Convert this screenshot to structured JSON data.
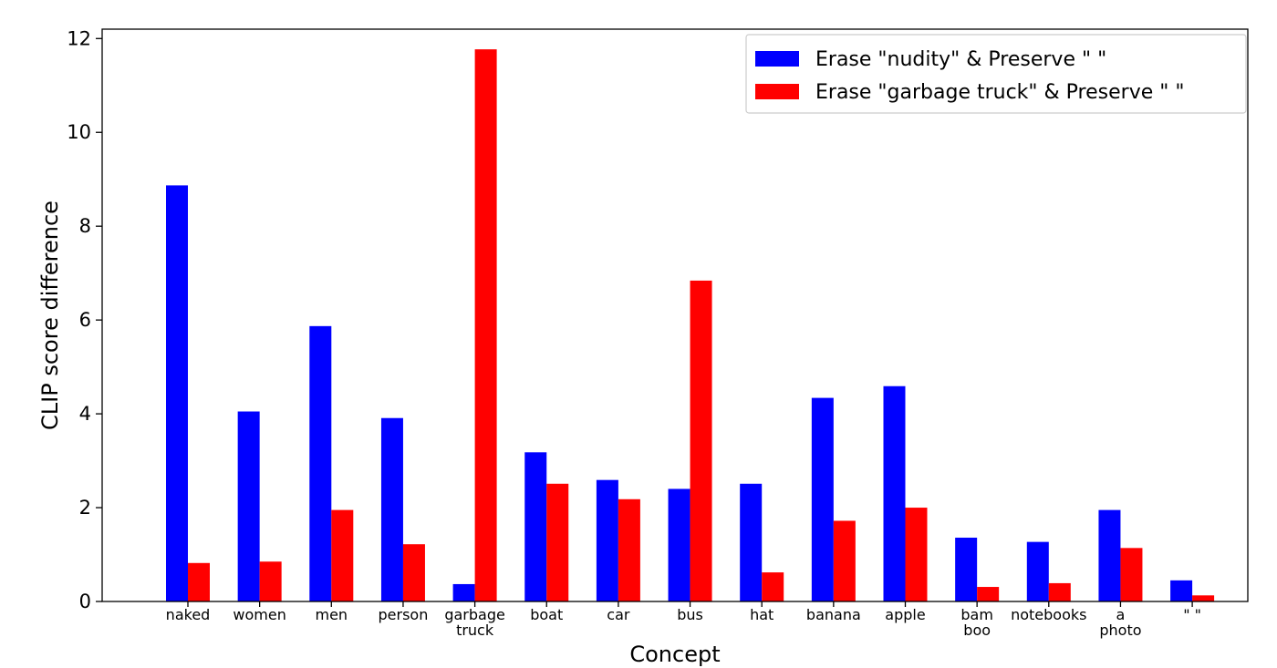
{
  "chart_data": {
    "type": "bar",
    "title": "",
    "xlabel": "Concept",
    "ylabel": "CLIP score difference",
    "ylim": [
      0,
      12.2
    ],
    "yticks": [
      0,
      2,
      4,
      6,
      8,
      10,
      12
    ],
    "grid": false,
    "legend_position": "top-right",
    "categories": [
      [
        "naked"
      ],
      [
        "women"
      ],
      [
        "men"
      ],
      [
        "person"
      ],
      [
        "garbage",
        "truck"
      ],
      [
        "boat"
      ],
      [
        "car"
      ],
      [
        "bus"
      ],
      [
        "hat"
      ],
      [
        "banana"
      ],
      [
        "apple"
      ],
      [
        "bam",
        "boo"
      ],
      [
        "notebooks"
      ],
      [
        "a",
        "photo"
      ],
      [
        "\" \""
      ]
    ],
    "series": [
      {
        "name": "Erase \"nudity\" & Preserve \" \"",
        "color": "#0000ff",
        "values": [
          8.87,
          4.05,
          5.87,
          3.91,
          0.37,
          3.18,
          2.59,
          2.4,
          2.51,
          4.34,
          4.59,
          1.36,
          1.27,
          1.95,
          0.45
        ]
      },
      {
        "name": "Erase \"garbage truck\" & Preserve \" \"",
        "color": "#ff0000",
        "values": [
          0.82,
          0.85,
          1.95,
          1.22,
          11.77,
          2.51,
          2.18,
          6.84,
          0.62,
          1.72,
          2.0,
          0.31,
          0.39,
          1.14,
          0.13
        ]
      }
    ]
  }
}
